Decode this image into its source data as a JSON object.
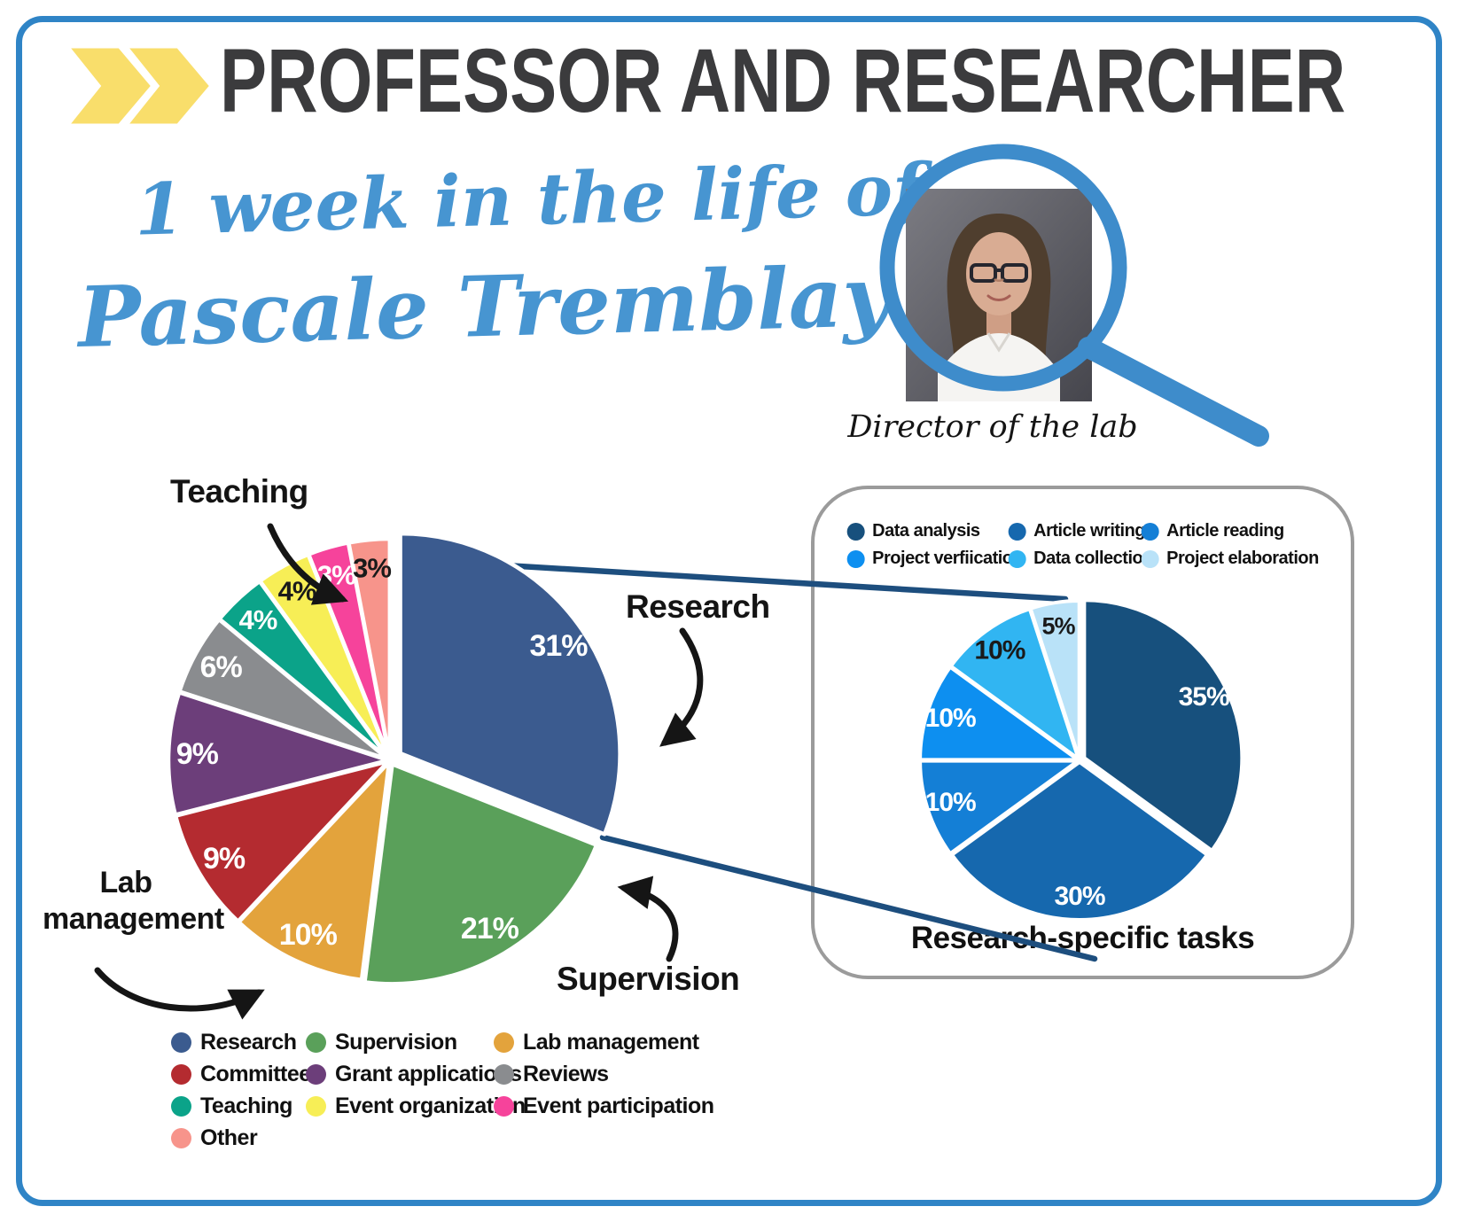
{
  "frame": {
    "border_color": "#2F84C6"
  },
  "header": {
    "title": "PROFESSOR AND RESEARCHER",
    "title_color": "#3B3B3D",
    "chevron_color": "#F9DE6B",
    "subtitle_line1": "1 week in the life of",
    "subtitle_line2": "Pascale Tremblay",
    "subtitle_color": "#4795D1"
  },
  "portrait": {
    "caption": "Director of the lab",
    "ring_color": "#3E8CCB"
  },
  "annotations": {
    "teaching": "Teaching",
    "research": "Research",
    "supervision": "Supervision",
    "lab_management_line1": "Lab",
    "lab_management_line2": "management"
  },
  "panel": {
    "title": "Research-specific tasks",
    "border_color": "#9B9B9B"
  },
  "connector": {
    "color": "#1D4E7E"
  },
  "chart_data": [
    {
      "type": "pie",
      "name": "weekly-activities",
      "title": "1 week in the life of Pascale Tremblay",
      "start_angle_deg": 0,
      "direction": "clockwise",
      "legend_position": "bottom-left",
      "slices": [
        {
          "label": "Research",
          "value": 31,
          "color": "#3B5B8F",
          "pct_label": "31%",
          "pct_color": "#FFFFFF"
        },
        {
          "label": "Supervision",
          "value": 21,
          "color": "#5AA05A",
          "pct_label": "21%",
          "pct_color": "#FFFFFF"
        },
        {
          "label": "Lab management",
          "value": 10,
          "color": "#E3A33C",
          "pct_label": "10%",
          "pct_color": "#FFFFFF"
        },
        {
          "label": "Committees",
          "value": 9,
          "color": "#B42B30",
          "pct_label": "9%",
          "pct_color": "#FFFFFF"
        },
        {
          "label": "Grant applications",
          "value": 9,
          "color": "#6C3E7A",
          "pct_label": "9%",
          "pct_color": "#FFFFFF"
        },
        {
          "label": "Reviews",
          "value": 6,
          "color": "#8A8C8F",
          "pct_label": "6%",
          "pct_color": "#FFFFFF"
        },
        {
          "label": "Teaching",
          "value": 4,
          "color": "#0BA389",
          "pct_label": "4%",
          "pct_color": "#FFFFFF"
        },
        {
          "label": "Event organization",
          "value": 4,
          "color": "#F7EE56",
          "pct_label": "4%",
          "pct_color": "#1A1A1A"
        },
        {
          "label": "Event participation",
          "value": 3,
          "color": "#F6439B",
          "pct_label": "3%",
          "pct_color": "#FFFFFF"
        },
        {
          "label": "Other",
          "value": 3,
          "color": "#F7948B",
          "pct_label": "3%",
          "pct_color": "#1A1A1A"
        }
      ]
    },
    {
      "type": "pie",
      "name": "research-specific-tasks",
      "title": "Research-specific tasks",
      "start_angle_deg": 0,
      "direction": "clockwise",
      "legend_position": "top",
      "slices": [
        {
          "label": "Data analysis",
          "value": 35,
          "color": "#17507D",
          "pct_label": "35%",
          "pct_color": "#FFFFFF"
        },
        {
          "label": "Article writing",
          "value": 30,
          "color": "#1668AE",
          "pct_label": "30%",
          "pct_color": "#FFFFFF"
        },
        {
          "label": "Article reading",
          "value": 10,
          "color": "#147FD6",
          "pct_label": "10%",
          "pct_color": "#FFFFFF"
        },
        {
          "label": "Project verfiication",
          "value": 10,
          "color": "#0D8FF0",
          "pct_label": "10%",
          "pct_color": "#FFFFFF"
        },
        {
          "label": "Data collection",
          "value": 10,
          "color": "#31B5F2",
          "pct_label": "10%",
          "pct_color": "#1A1A1A"
        },
        {
          "label": "Project elaboration",
          "value": 5,
          "color": "#B9E2F8",
          "pct_label": "5%",
          "pct_color": "#1A1A1A"
        }
      ]
    }
  ]
}
